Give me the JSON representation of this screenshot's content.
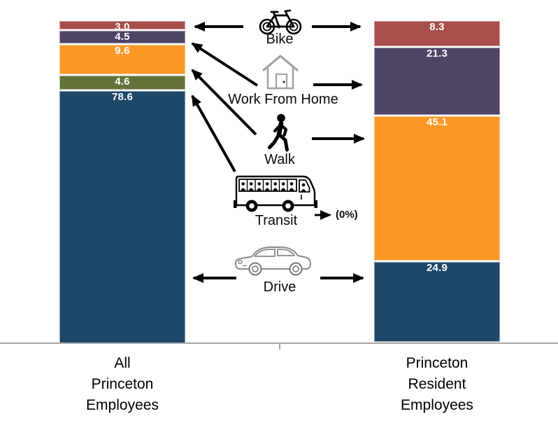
{
  "chart_data": {
    "type": "bar",
    "variant": "stacked-100-percent-columns",
    "title": "",
    "categories": [
      "All Princeton Employees",
      "Princeton Resident Employees"
    ],
    "series": [
      {
        "name": "Bike",
        "color": "#A84F4B",
        "values": [
          3.0,
          8.3
        ]
      },
      {
        "name": "Work From Home",
        "color": "#4F4366",
        "values": [
          4.5,
          21.3
        ]
      },
      {
        "name": "Walk",
        "color": "#FD9727",
        "values": [
          9.6,
          45.1
        ]
      },
      {
        "name": "Transit",
        "color": "#647339",
        "values": [
          4.6,
          0
        ]
      },
      {
        "name": "Drive",
        "color": "#1F4767",
        "values": [
          78.6,
          24.9
        ]
      }
    ],
    "ylim": [
      0,
      100
    ],
    "grid": false,
    "legend_position": "center-icon-column",
    "value_labels": "inside-top, one decimal, white bold",
    "annotations": [
      {
        "text": "(0%)",
        "applies_to": "Transit value for Princeton Resident Employees"
      }
    ]
  },
  "modes": [
    {
      "label": "Bike",
      "icon": "bike-icon"
    },
    {
      "label": "Work From Home",
      "icon": "house-icon"
    },
    {
      "label": "Walk",
      "icon": "walking-person-icon"
    },
    {
      "label": "Transit",
      "icon": "bus-icon",
      "note": "(0%)"
    },
    {
      "label": "Drive",
      "icon": "car-icon"
    }
  ],
  "x_axis": {
    "left_label_lines": [
      "All",
      "Princeton",
      "Employees"
    ],
    "right_label_lines": [
      "Princeton",
      "Resident",
      "Employees"
    ]
  }
}
